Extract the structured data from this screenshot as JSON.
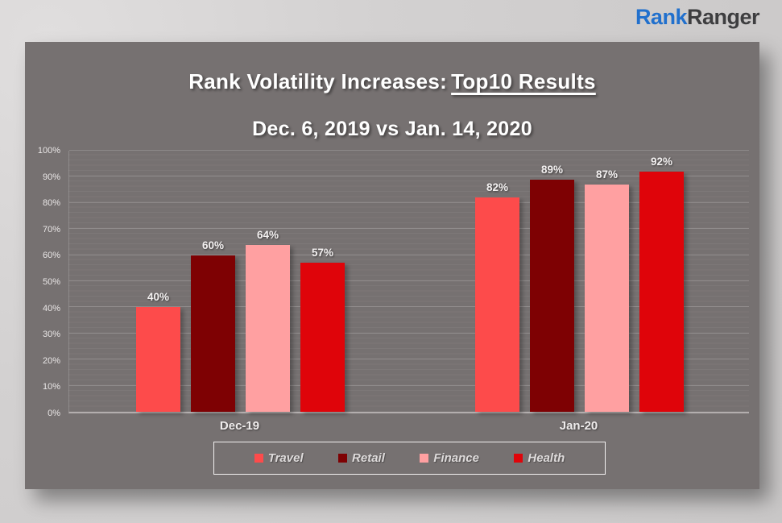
{
  "logo": {
    "text_blue": "Rank",
    "text_dark": "Ranger",
    "color_blue": "#2170CD",
    "color_dark": "#3E3E40"
  },
  "chart": {
    "title_prefix": "Rank Volatility Increases:",
    "title_underlined": "Top10 Results",
    "subtitle": "Dec. 6, 2019 vs Jan. 14, 2020",
    "panel_color": "#767171",
    "page_color": "#D3D1D1"
  },
  "chart_data": {
    "type": "bar",
    "title": "Rank Volatility Increases: Top10 Results",
    "subtitle": "Dec. 6, 2019 vs Jan. 14, 2020",
    "categories": [
      "Dec-19",
      "Jan-20"
    ],
    "series": [
      {
        "name": "Travel",
        "values": [
          40,
          82
        ],
        "color": "#FD4B4B"
      },
      {
        "name": "Retail",
        "values": [
          60,
          89
        ],
        "color": "#7E0103"
      },
      {
        "name": "Finance",
        "values": [
          64,
          87
        ],
        "color": "#FFA0A1"
      },
      {
        "name": "Health",
        "values": [
          57,
          92
        ],
        "color": "#DF040A"
      }
    ],
    "xlabel": "",
    "ylabel": "",
    "ylim": [
      0,
      100
    ],
    "ytick_step": 10,
    "ytick_suffix": "%",
    "data_label_suffix": "%",
    "grid": true,
    "legend_position": "bottom"
  }
}
